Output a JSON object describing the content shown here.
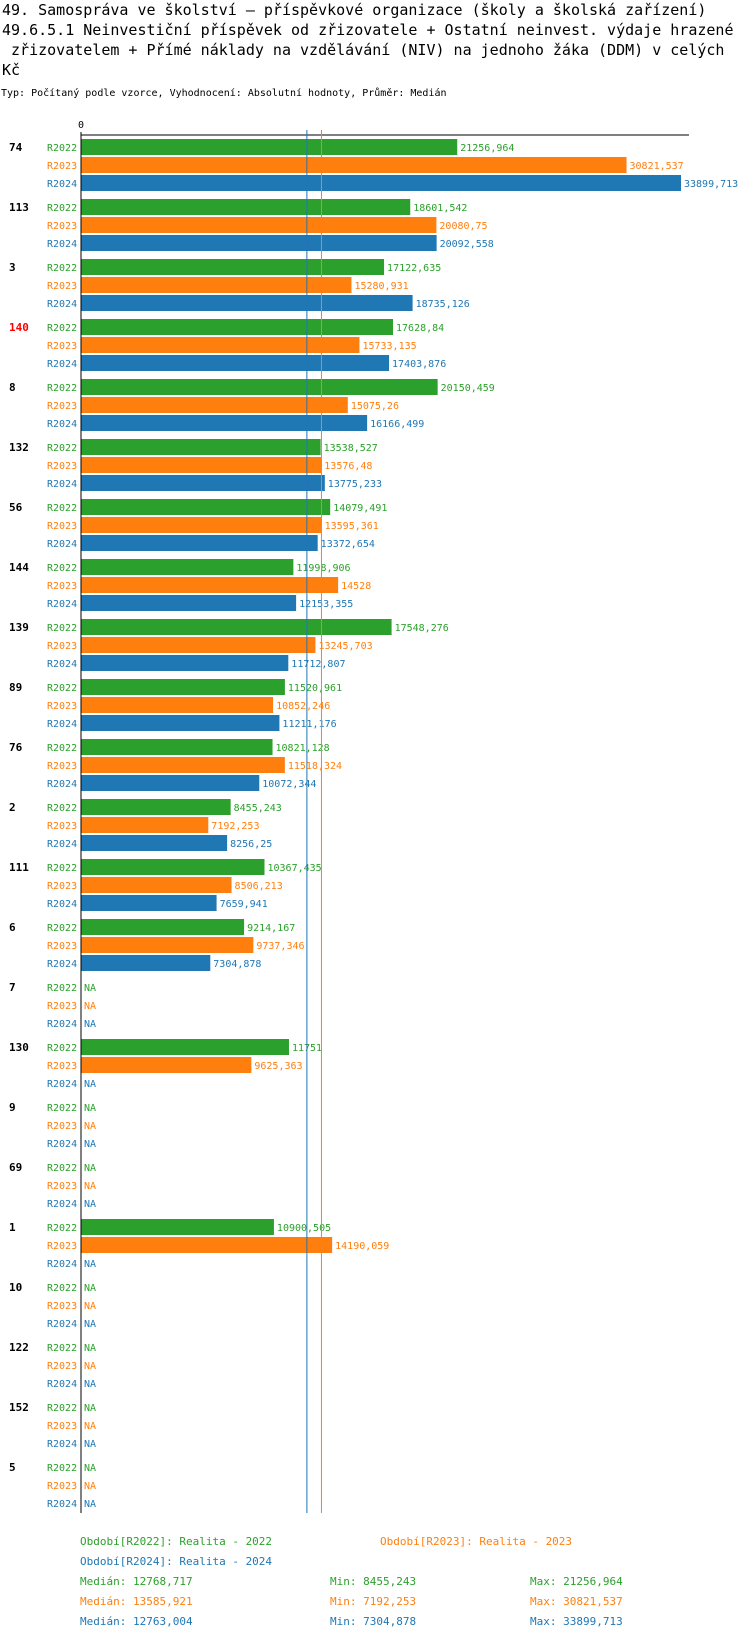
{
  "title_lines": [
    "49. Samospráva ve školství – příspěvkové organizace (školy a školská zařízení)",
    "49.6.5.1 Neinvestiční příspěvek od zřizovatele + Ostatní neinvest. výdaje hrazené",
    " zřizovatelem + Přímé náklady na vzdělávání (NIV) na jednoho žáka (DDM) v celých",
    "Kč"
  ],
  "meta": "Typ: Počítaný podle vzorce, Vyhodnocení: Absolutní hodnoty, Průměr: Medián",
  "colors": {
    "R2022": "#2ca02c",
    "R2023": "#ff7f0e",
    "R2024": "#1f77b4",
    "highlight": "#ff0000"
  },
  "chart_data": {
    "type": "bar",
    "orientation": "horizontal",
    "axis_zero_label": "0",
    "xlim": [
      0,
      33899.713
    ],
    "series_names": [
      "R2022",
      "R2023",
      "R2024"
    ],
    "na_label": "NA",
    "highlight_category": "140",
    "median_lines": [
      {
        "series": "R2024",
        "value": 12763.004
      },
      {
        "series": "R2023",
        "value": 13585.921
      }
    ],
    "categories": [
      {
        "name": "74",
        "values": [
          21256.964,
          30821.537,
          33899.713
        ],
        "labels": [
          "21256,964",
          "30821,537",
          "33899,713"
        ]
      },
      {
        "name": "113",
        "values": [
          18601.542,
          20080.75,
          20092.558
        ],
        "labels": [
          "18601,542",
          "20080,75",
          "20092,558"
        ]
      },
      {
        "name": "3",
        "values": [
          17122.635,
          15280.931,
          18735.126
        ],
        "labels": [
          "17122,635",
          "15280,931",
          "18735,126"
        ]
      },
      {
        "name": "140",
        "values": [
          17628.84,
          15733.135,
          17403.876
        ],
        "labels": [
          "17628,84",
          "15733,135",
          "17403,876"
        ]
      },
      {
        "name": "8",
        "values": [
          20150.459,
          15075.26,
          16166.499
        ],
        "labels": [
          "20150,459",
          "15075,26",
          "16166,499"
        ]
      },
      {
        "name": "132",
        "values": [
          13538.527,
          13576.48,
          13775.233
        ],
        "labels": [
          "13538,527",
          "13576,48",
          "13775,233"
        ]
      },
      {
        "name": "56",
        "values": [
          14079.491,
          13595.361,
          13372.654
        ],
        "labels": [
          "14079,491",
          "13595,361",
          "13372,654"
        ]
      },
      {
        "name": "144",
        "values": [
          11998.906,
          14528,
          12153.355
        ],
        "labels": [
          "11998,906",
          "14528",
          "12153,355"
        ]
      },
      {
        "name": "139",
        "values": [
          17548.276,
          13245.703,
          11712.807
        ],
        "labels": [
          "17548,276",
          "13245,703",
          "11712,807"
        ]
      },
      {
        "name": "89",
        "values": [
          11520.961,
          10852.246,
          11211.176
        ],
        "labels": [
          "11520,961",
          "10852,246",
          "11211,176"
        ]
      },
      {
        "name": "76",
        "values": [
          10821.128,
          11518.324,
          10072.344
        ],
        "labels": [
          "10821,128",
          "11518,324",
          "10072,344"
        ]
      },
      {
        "name": "2",
        "values": [
          8455.243,
          7192.253,
          8256.25
        ],
        "labels": [
          "8455,243",
          "7192,253",
          "8256,25"
        ]
      },
      {
        "name": "111",
        "values": [
          10367.435,
          8506.213,
          7659.941
        ],
        "labels": [
          "10367,435",
          "8506,213",
          "7659,941"
        ]
      },
      {
        "name": "6",
        "values": [
          9214.167,
          9737.346,
          7304.878
        ],
        "labels": [
          "9214,167",
          "9737,346",
          "7304,878"
        ]
      },
      {
        "name": "7",
        "values": [
          null,
          null,
          null
        ],
        "labels": [
          "NA",
          "NA",
          "NA"
        ]
      },
      {
        "name": "130",
        "values": [
          11751,
          9625.363,
          null
        ],
        "labels": [
          "11751",
          "9625,363",
          "NA"
        ]
      },
      {
        "name": "9",
        "values": [
          null,
          null,
          null
        ],
        "labels": [
          "NA",
          "NA",
          "NA"
        ]
      },
      {
        "name": "69",
        "values": [
          null,
          null,
          null
        ],
        "labels": [
          "NA",
          "NA",
          "NA"
        ]
      },
      {
        "name": "1",
        "values": [
          10900.505,
          14190.059,
          null
        ],
        "labels": [
          "10900,505",
          "14190,059",
          "NA"
        ]
      },
      {
        "name": "10",
        "values": [
          null,
          null,
          null
        ],
        "labels": [
          "NA",
          "NA",
          "NA"
        ]
      },
      {
        "name": "122",
        "values": [
          null,
          null,
          null
        ],
        "labels": [
          "NA",
          "NA",
          "NA"
        ]
      },
      {
        "name": "152",
        "values": [
          null,
          null,
          null
        ],
        "labels": [
          "NA",
          "NA",
          "NA"
        ]
      },
      {
        "name": "5",
        "values": [
          null,
          null,
          null
        ],
        "labels": [
          "NA",
          "NA",
          "NA"
        ]
      }
    ]
  },
  "legend": {
    "r2022": "Období[R2022]: Realita - 2022",
    "r2023": "Období[R2023]: Realita - 2023",
    "r2024": "Období[R2024]: Realita - 2024"
  },
  "stats": [
    {
      "series": "R2022",
      "median": "Medián: 12768,717",
      "min": "Min: 8455,243",
      "max": "Max: 21256,964"
    },
    {
      "series": "R2023",
      "median": "Medián: 13585,921",
      "min": "Min: 7192,253",
      "max": "Max: 30821,537"
    },
    {
      "series": "R2024",
      "median": "Medián: 12763,004",
      "min": "Min: 7304,878",
      "max": "Max: 33899,713"
    }
  ]
}
